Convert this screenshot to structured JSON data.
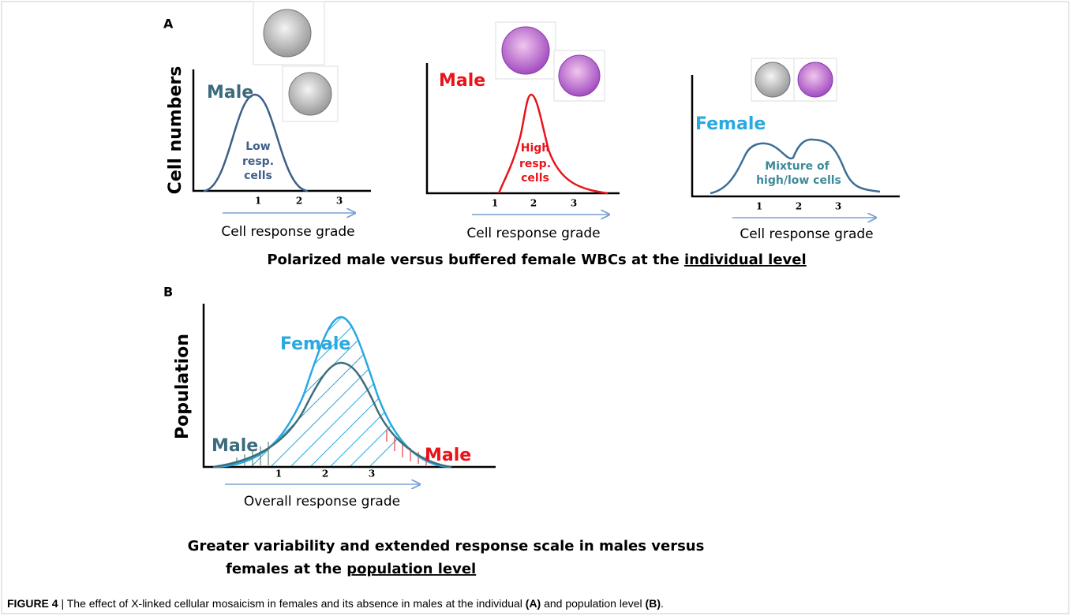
{
  "panel_a": {
    "label": "A",
    "y_label": "Cell numbers",
    "plots": [
      {
        "title": "Male",
        "inner_text": [
          "Low",
          "resp.",
          "cells"
        ],
        "ticks": [
          "1",
          "2",
          "3"
        ],
        "x_label": "Cell response grade"
      },
      {
        "title": "Male",
        "inner_text": [
          "High",
          "resp.",
          "cells"
        ],
        "ticks": [
          "1",
          "2",
          "3"
        ],
        "x_label": "Cell response grade"
      },
      {
        "title": "Female",
        "inner_text": [
          "Mixture of",
          "high/low cells"
        ],
        "ticks": [
          "1",
          "2",
          "3"
        ],
        "x_label": "Cell response grade"
      }
    ],
    "caption": "Polarized male versus buffered female WBCs at the ",
    "caption_underlined": "individual level"
  },
  "panel_b": {
    "label": "B",
    "y_label": "Population",
    "female_label": "Female",
    "male_left_label": "Male",
    "male_right_label": "Male",
    "ticks": [
      "1",
      "2",
      "3"
    ],
    "x_label": "Overall response grade",
    "caption_line_1": "Greater variability and extended response scale in males versus",
    "caption_line_2": "females at the ",
    "caption_underlined": "population level"
  },
  "figure_caption": {
    "label": "FIGURE 4",
    "text_1": " | The effect of X-linked cellular mosaicism in females and its absence in males at the individual ",
    "ref_a": "(A)",
    "text_2": " and population level ",
    "ref_b": "(B)",
    "text_3": "."
  }
}
